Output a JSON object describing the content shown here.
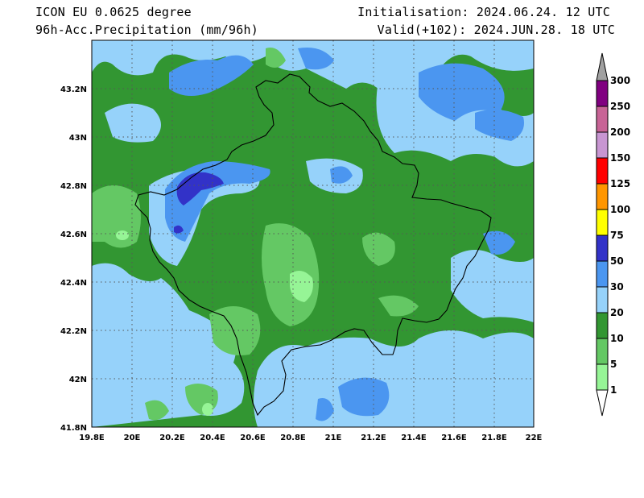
{
  "header": {
    "model": "ICON EU 0.0625 degree",
    "variable": "96h-Acc.Precipitation (mm/96h)",
    "init": "Initialisation: 2024.06.24. 12 UTC",
    "valid": "Valid(+102): 2024.JUN.28. 18 UTC"
  },
  "map": {
    "lat_labels": [
      "43.2N",
      "43N",
      "42.8N",
      "42.6N",
      "42.4N",
      "42.2N",
      "42N",
      "41.8N"
    ],
    "lon_labels": [
      "19.8E",
      "20E",
      "20.2E",
      "20.4E",
      "20.6E",
      "20.8E",
      "21E",
      "21.2E",
      "21.4E",
      "21.6E",
      "21.8E",
      "22E"
    ],
    "lat_range": [
      41.8,
      43.4
    ],
    "lon_range": [
      19.8,
      22.0
    ],
    "grid": true
  },
  "legend": {
    "unit": "mm/96h",
    "levels": [
      "300",
      "250",
      "200",
      "150",
      "125",
      "100",
      "75",
      "50",
      "30",
      "20",
      "10",
      "5",
      "1"
    ],
    "colors": [
      "#800080",
      "#c86496",
      "#c896d2",
      "#ff0000",
      "#ff9600",
      "#ffff00",
      "#3232c8",
      "#4b96f0",
      "#96d2fa",
      "#329632",
      "#64c864",
      "#96f596"
    ],
    "cap_colors": {
      "top": "#a0a0a0",
      "bottom": "#ffffff"
    }
  }
}
